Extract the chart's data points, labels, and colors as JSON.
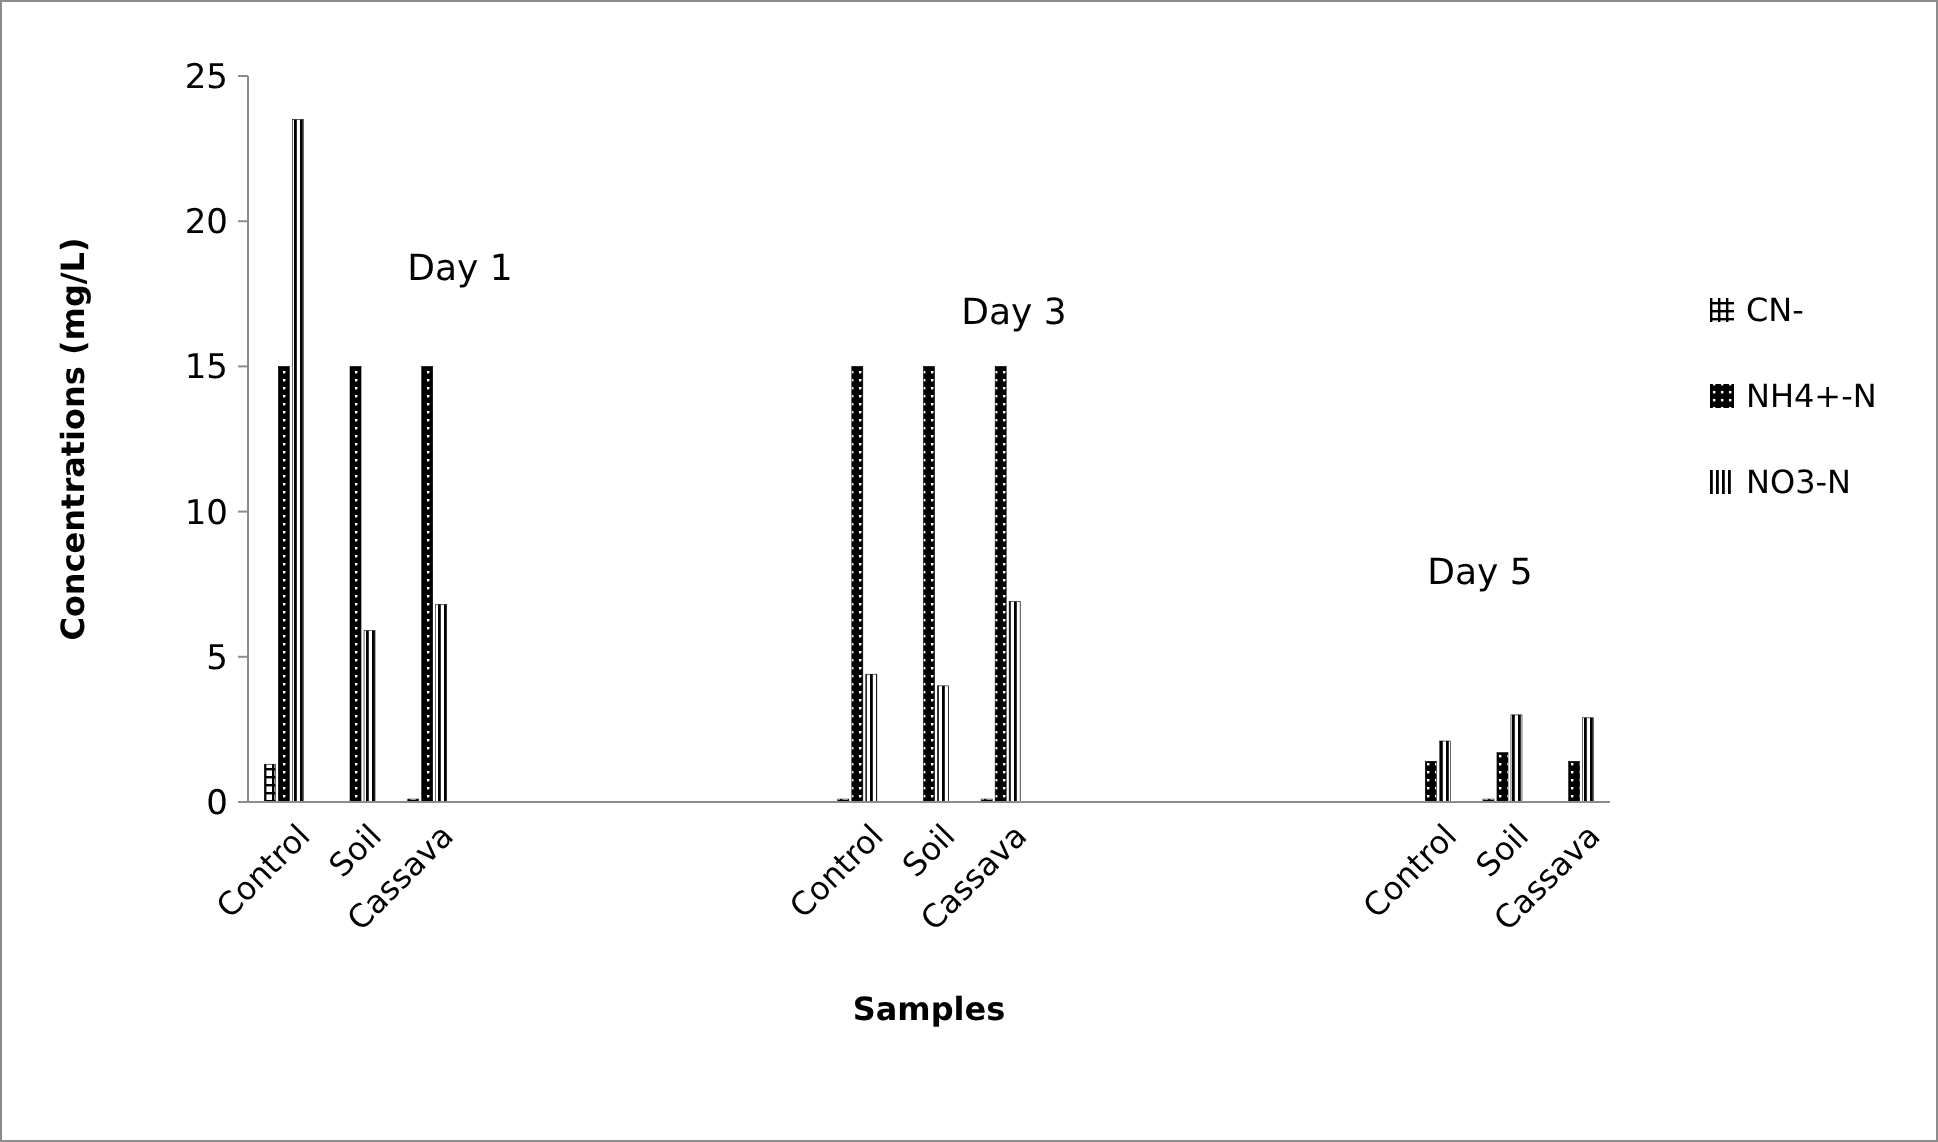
{
  "chart_data": {
    "type": "bar",
    "xlabel": "Samples",
    "ylabel": "Concentrations (mg/L)",
    "categories": [
      "Control",
      "Soil",
      "Cassava",
      null,
      null,
      null,
      null,
      null,
      "Control",
      "Soil",
      "Cassava",
      null,
      null,
      null,
      null,
      null,
      "Control",
      "Soil",
      "Cassava"
    ],
    "series": [
      {
        "name": "CN-",
        "color": "#000000",
        "values": [
          1.3,
          0,
          0.1,
          null,
          null,
          null,
          null,
          null,
          0.1,
          0,
          0.1,
          null,
          null,
          null,
          null,
          null,
          0,
          0.1,
          0
        ]
      },
      {
        "name": "NH4+-N",
        "color": "#000000",
        "values": [
          15,
          15,
          15,
          null,
          null,
          null,
          null,
          null,
          15,
          15,
          15,
          null,
          null,
          null,
          null,
          null,
          1.4,
          1.7,
          1.4
        ]
      },
      {
        "name": "NO3-N",
        "color": "#000000",
        "values": [
          23.5,
          5.9,
          6.8,
          null,
          null,
          null,
          null,
          null,
          4.4,
          4.0,
          6.9,
          null,
          null,
          null,
          null,
          null,
          2.1,
          3.0,
          2.9
        ]
      }
    ],
    "ylim": [
      0,
      25
    ],
    "yticks": [
      0,
      5,
      10,
      15,
      20,
      25
    ],
    "grid": false,
    "legend": "right",
    "annotations": [
      "Day 1",
      "Day 3",
      "Day 5"
    ]
  }
}
